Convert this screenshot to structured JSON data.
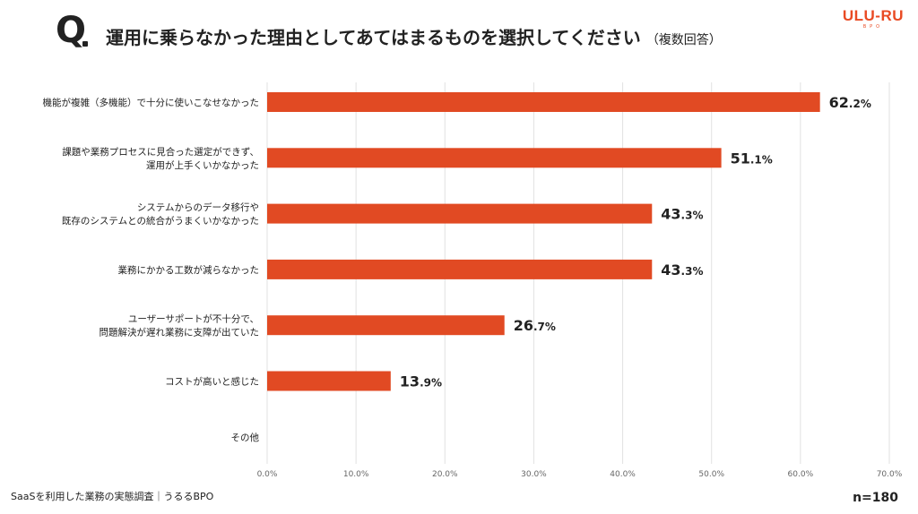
{
  "header": {
    "q_mark": "Q",
    "title": "運用に乗らなかった理由としてあてはまるものを選択してください",
    "title_note": "（複数回答）",
    "brand_name": "ULU-RU",
    "brand_sub": "BPO"
  },
  "footer": {
    "source": "SaaSを利用した業務の実態調査｜うるるBPO",
    "n": "n=180"
  },
  "colors": {
    "bar": "#e14a23",
    "grid": "#e2e2e2"
  },
  "chart_data": {
    "type": "bar",
    "orientation": "horizontal",
    "categories": [
      "機能が複雑（多機能）で十分に使いこなせなかった",
      "課題や業務プロセスに見合った選定ができず、\n運用が上手くいかなかった",
      "システムからのデータ移行や\n既存のシステムとの統合がうまくいかなかった",
      "業務にかかる工数が減らなかった",
      "ユーザーサポートが不十分で、\n問題解決が遅れ業務に支障が出ていた",
      "コストが高いと感じた",
      "その他"
    ],
    "values": [
      62.2,
      51.1,
      43.3,
      43.3,
      26.7,
      13.9,
      0
    ],
    "value_labels": [
      [
        "62",
        ".2%"
      ],
      [
        "51",
        ".1%"
      ],
      [
        "43",
        ".3%"
      ],
      [
        "43",
        ".3%"
      ],
      [
        "26",
        ".7%"
      ],
      [
        "13",
        ".9%"
      ],
      null
    ],
    "xlim": [
      0,
      70
    ],
    "xticks": [
      "0.0%",
      "10.0%",
      "20.0%",
      "30.0%",
      "40.0%",
      "50.0%",
      "60.0%",
      "70.0%"
    ],
    "grid": true
  }
}
